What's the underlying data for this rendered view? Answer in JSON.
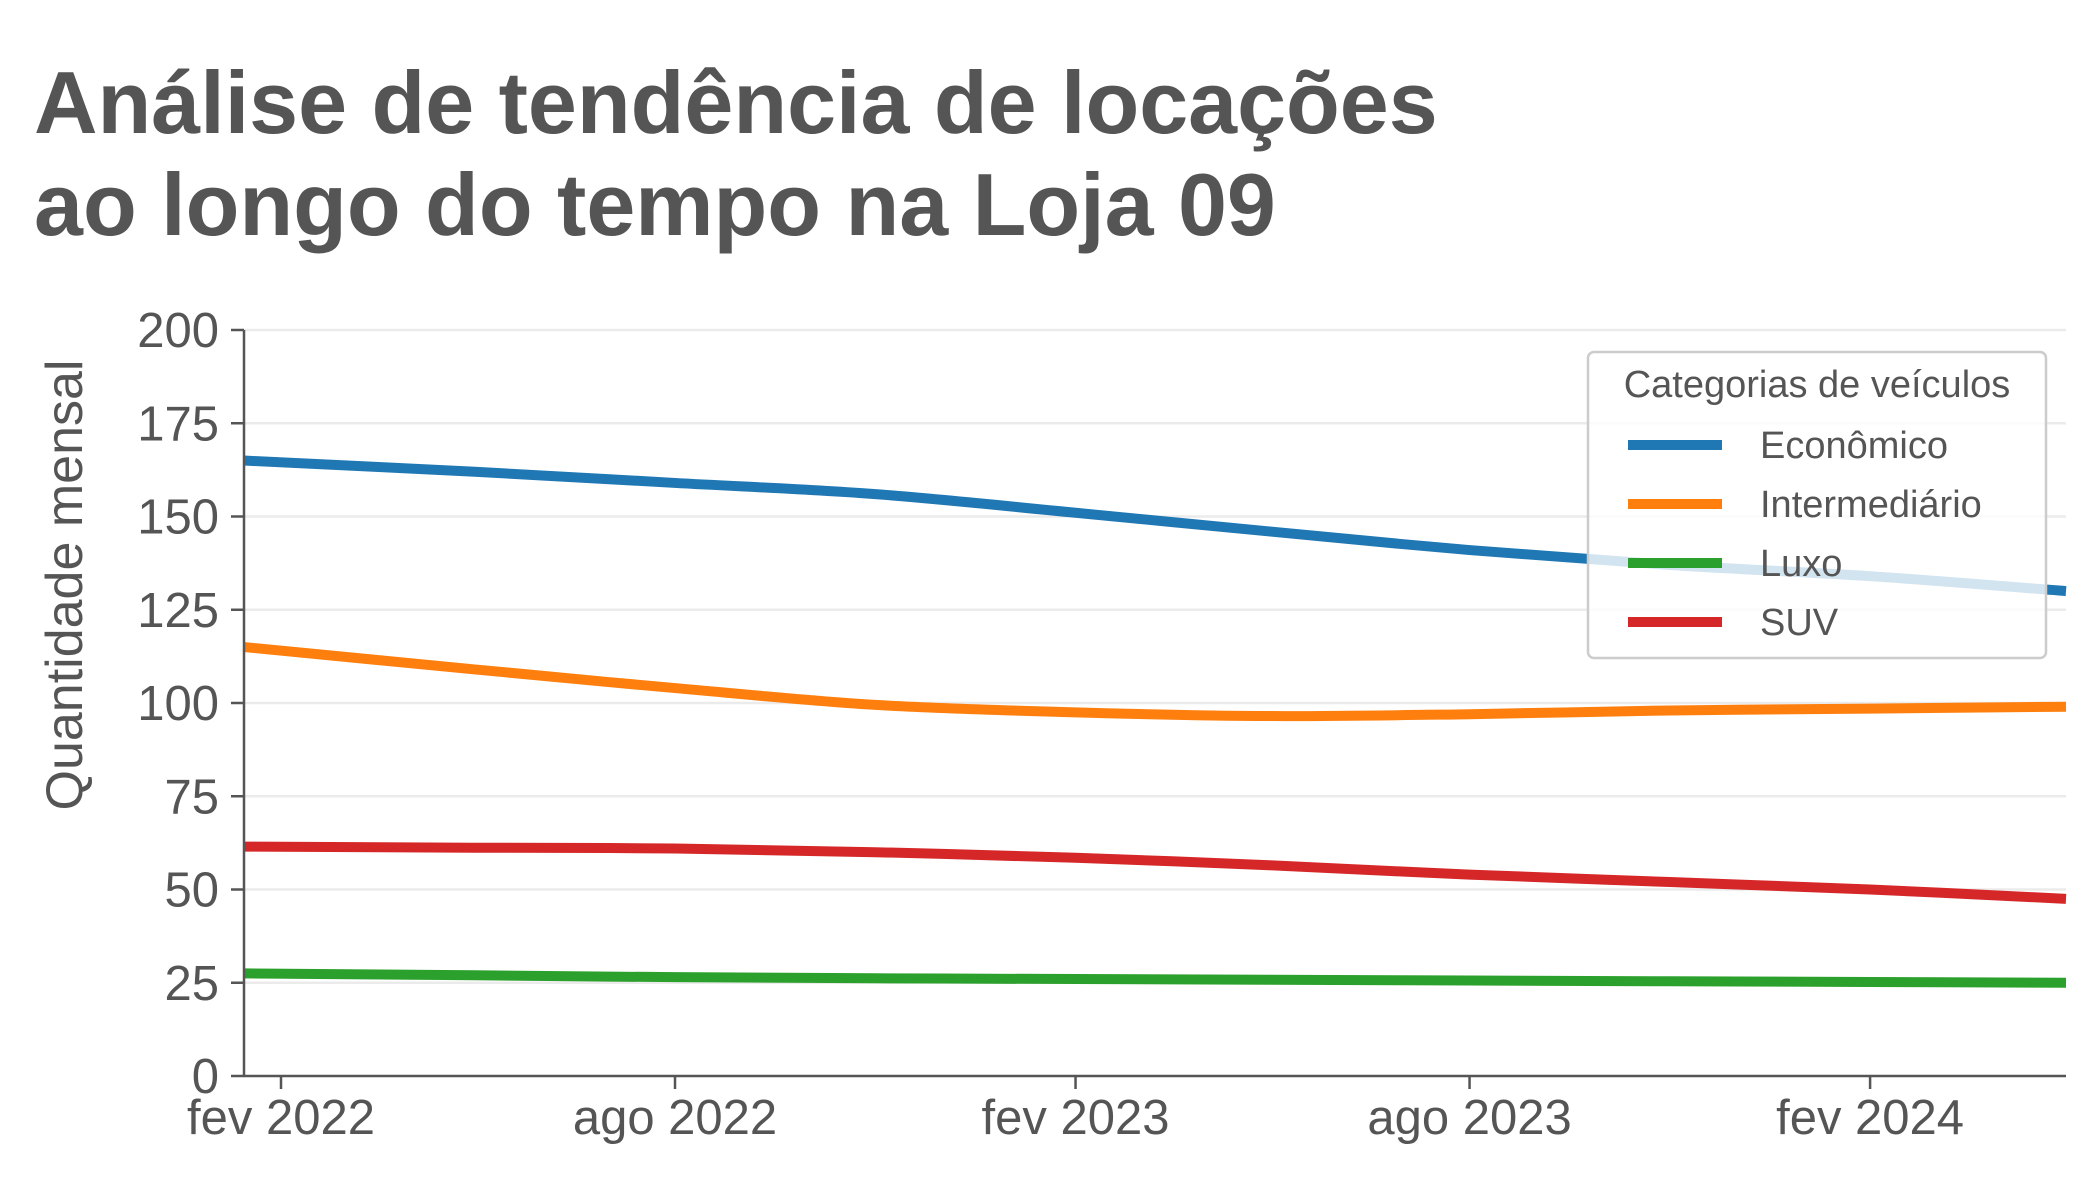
{
  "title_lines": [
    "Análise de tendência de locações",
    "ao longo do tempo na Loja 09"
  ],
  "chart_data": {
    "type": "line",
    "ylabel": "Quantidade mensal",
    "xlabel": "",
    "ylim": [
      0,
      200
    ],
    "yticks": [
      0,
      25,
      50,
      75,
      100,
      125,
      150,
      175,
      200
    ],
    "xlim": [
      "2022-01-15",
      "2024-05-01"
    ],
    "xticks": [
      {
        "date": "2022-02-01",
        "label": "fev 2022"
      },
      {
        "date": "2022-08-01",
        "label": "ago 2022"
      },
      {
        "date": "2023-02-01",
        "label": "fev 2023"
      },
      {
        "date": "2023-08-01",
        "label": "ago 2023"
      },
      {
        "date": "2024-02-01",
        "label": "fev 2024"
      }
    ],
    "grid": "horizontal",
    "legend": {
      "title": "Categorias de veículos",
      "placement": "top-right"
    },
    "series": [
      {
        "name": "Econômico",
        "color": "#1f77b4",
        "points": [
          [
            "2022-01-15",
            165
          ],
          [
            "2022-05-01",
            162
          ],
          [
            "2022-08-01",
            159
          ],
          [
            "2022-11-01",
            156
          ],
          [
            "2023-02-01",
            151
          ],
          [
            "2023-05-01",
            146
          ],
          [
            "2023-08-01",
            141
          ],
          [
            "2023-11-01",
            137
          ],
          [
            "2024-02-01",
            134
          ],
          [
            "2024-05-01",
            130
          ]
        ]
      },
      {
        "name": "Intermediário",
        "color": "#ff7f0e",
        "points": [
          [
            "2022-01-15",
            115
          ],
          [
            "2022-05-01",
            109
          ],
          [
            "2022-08-01",
            104
          ],
          [
            "2022-11-01",
            99.5
          ],
          [
            "2023-02-01",
            97.5
          ],
          [
            "2023-05-01",
            96.5
          ],
          [
            "2023-08-01",
            97
          ],
          [
            "2023-11-01",
            98
          ],
          [
            "2024-02-01",
            98.5
          ],
          [
            "2024-05-01",
            99
          ]
        ]
      },
      {
        "name": "Luxo",
        "color": "#2ca02c",
        "points": [
          [
            "2022-01-15",
            27.5
          ],
          [
            "2022-05-01",
            27
          ],
          [
            "2022-08-01",
            26.5
          ],
          [
            "2022-11-01",
            26.2
          ],
          [
            "2023-02-01",
            26
          ],
          [
            "2023-05-01",
            25.8
          ],
          [
            "2023-08-01",
            25.6
          ],
          [
            "2023-11-01",
            25.4
          ],
          [
            "2024-02-01",
            25.2
          ],
          [
            "2024-05-01",
            25
          ]
        ]
      },
      {
        "name": "SUV",
        "color": "#d62728",
        "points": [
          [
            "2022-01-15",
            61.5
          ],
          [
            "2022-05-01",
            61.2
          ],
          [
            "2022-08-01",
            61
          ],
          [
            "2022-11-01",
            60
          ],
          [
            "2023-02-01",
            58.5
          ],
          [
            "2023-05-01",
            56.5
          ],
          [
            "2023-08-01",
            54
          ],
          [
            "2023-11-01",
            52
          ],
          [
            "2024-02-01",
            50
          ],
          [
            "2024-05-01",
            47.5
          ]
        ]
      }
    ]
  }
}
